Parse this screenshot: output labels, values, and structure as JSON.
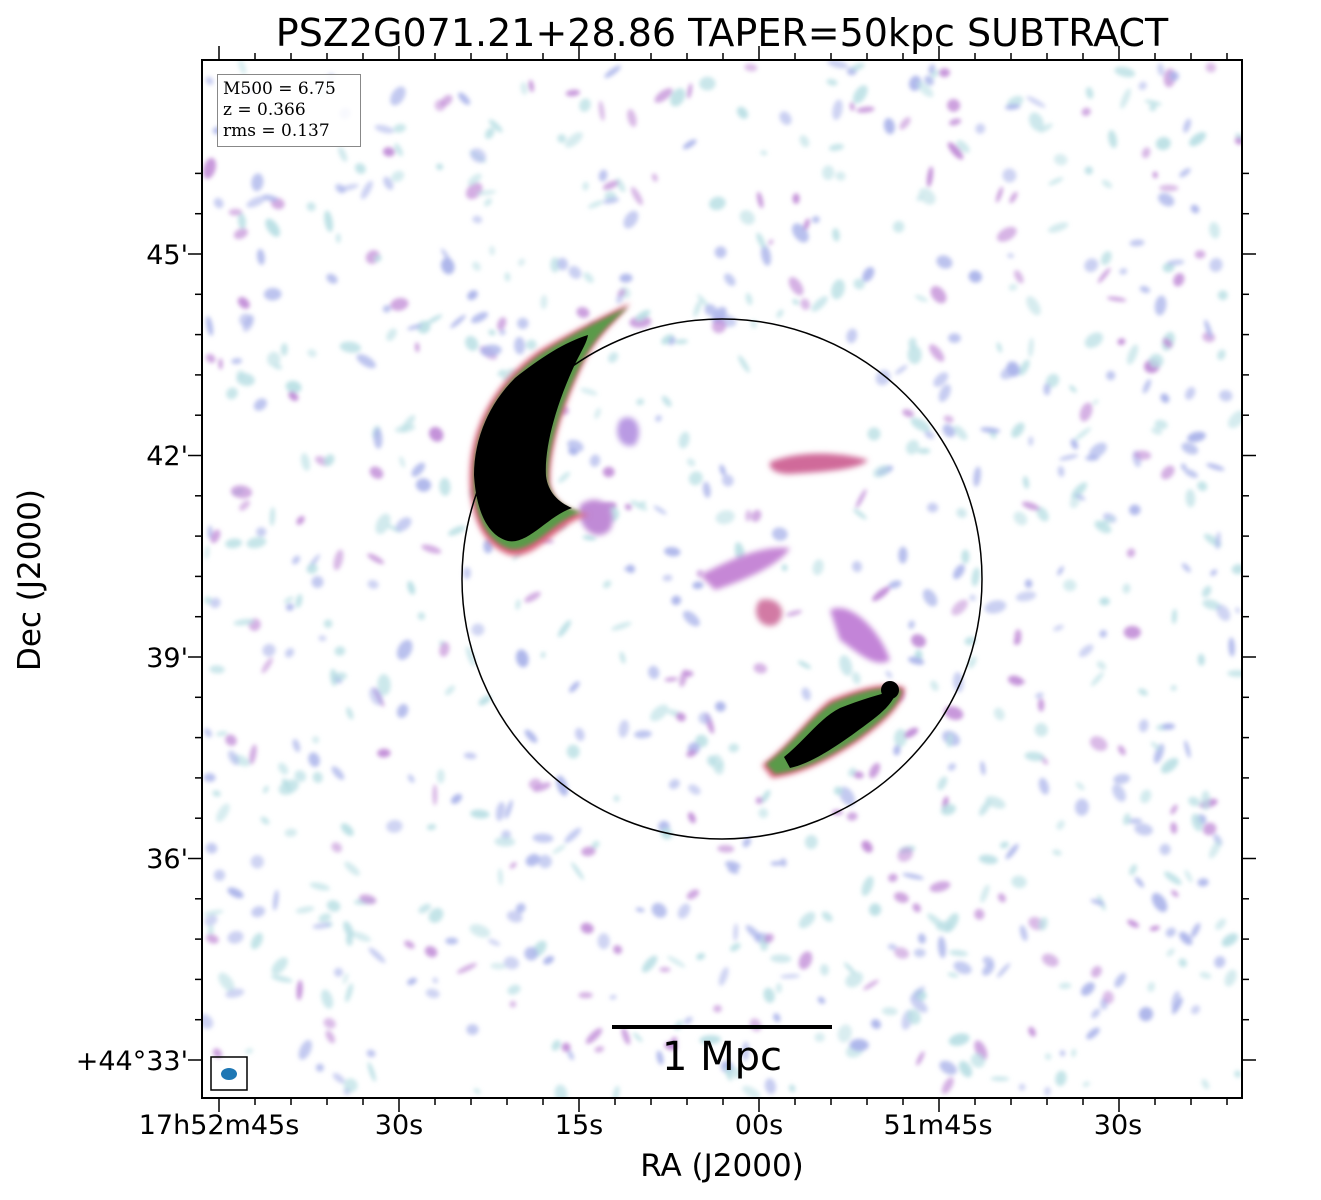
{
  "title": "PSZ2G071.21+28.86 TAPER=50kpc SUBTRACT",
  "axes": {
    "xlabel": "RA (J2000)",
    "ylabel": "Dec (J2000)",
    "xticks": [
      "17h52m45s",
      "30s",
      "15s",
      "00s",
      "51m45s",
      "30s"
    ],
    "yticks": [
      "45'",
      "42'",
      "39'",
      "36'",
      "+44°33'"
    ]
  },
  "info": {
    "m500": "M500 = 6.75",
    "z": "z = 0.366",
    "rms": "rms = 0.137"
  },
  "scalebar": {
    "label": "1 Mpc"
  },
  "colors": {
    "noise_light": "#b9dfe4",
    "noise_mid": "#aab3ea",
    "noise_strong": "#c08ad6",
    "emission_edge": "#d9607a",
    "emission_rim": "#4a8a3a",
    "emission_core": "#000000",
    "beam": "#1f77b4"
  }
}
